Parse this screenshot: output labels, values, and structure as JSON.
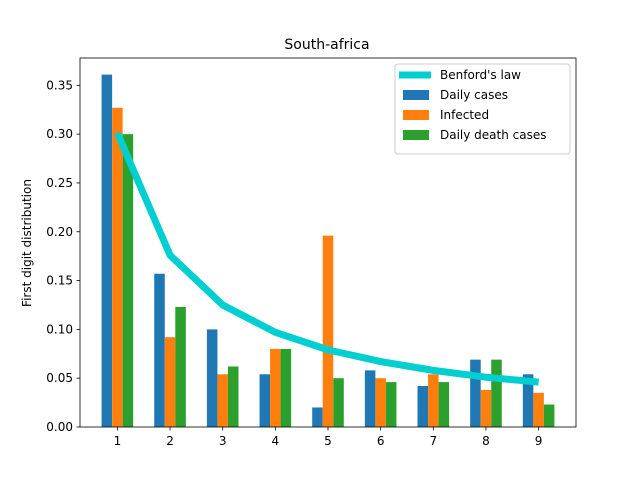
{
  "chart_data": {
    "type": "bar",
    "title": "South-africa",
    "xlabel": "",
    "ylabel": "First digit distribution",
    "categories": [
      "1",
      "2",
      "3",
      "4",
      "5",
      "6",
      "7",
      "8",
      "9"
    ],
    "x": [
      1,
      2,
      3,
      4,
      5,
      6,
      7,
      8,
      9
    ],
    "xlim": [
      0.29,
      9.71
    ],
    "ylim": [
      0,
      0.378
    ],
    "yticks": [
      0.0,
      0.05,
      0.1,
      0.15,
      0.2,
      0.25,
      0.3,
      0.35
    ],
    "ytick_labels": [
      "0.00",
      "0.05",
      "0.10",
      "0.15",
      "0.20",
      "0.25",
      "0.30",
      "0.35"
    ],
    "grid": false,
    "legend_position": "top-right",
    "line_series": {
      "name": "Benford's law",
      "color": "#00cfd1",
      "values": [
        0.301,
        0.176,
        0.125,
        0.097,
        0.079,
        0.067,
        0.058,
        0.051,
        0.046
      ]
    },
    "series": [
      {
        "name": "Daily cases",
        "color": "#1f77b4",
        "values": [
          0.361,
          0.157,
          0.1,
          0.054,
          0.02,
          0.058,
          0.042,
          0.069,
          0.054
        ]
      },
      {
        "name": "Infected",
        "color": "#ff7f0e",
        "values": [
          0.327,
          0.092,
          0.054,
          0.08,
          0.196,
          0.05,
          0.054,
          0.038,
          0.035
        ]
      },
      {
        "name": "Daily death cases",
        "color": "#2ca02c",
        "values": [
          0.3,
          0.123,
          0.062,
          0.08,
          0.05,
          0.046,
          0.046,
          0.069,
          0.023
        ]
      }
    ]
  }
}
